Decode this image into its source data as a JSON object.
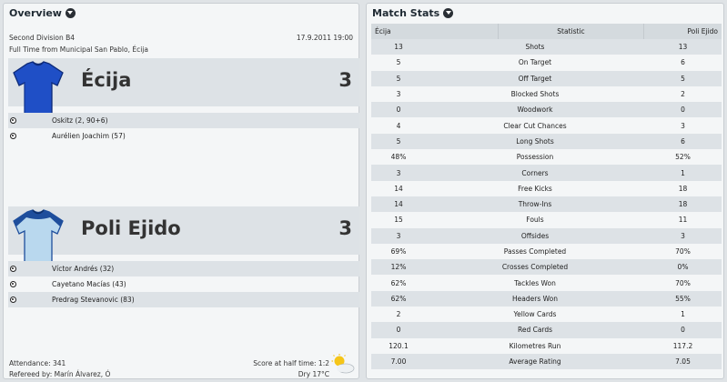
{
  "overview": {
    "title": "Overview",
    "division": "Second Division B4",
    "date_time": "17.9.2011 19:00",
    "venue_line": "Full Time from Municipal San Pablo, Écija",
    "home": {
      "name": "Écija",
      "score": "3",
      "shirt_color": "#1f4fc6",
      "scorers": [
        "Oskitz (2, 90+6)",
        "Aurélien Joachim (57)"
      ]
    },
    "away": {
      "name": "Poli Ejido",
      "score": "3",
      "shirt_color": "#b9d8ee",
      "shirt_trim": "#1e4e9c",
      "scorers": [
        "Víctor Andrés (32)",
        "Cayetano Macías (43)",
        "Predrag Stevanovic (83)"
      ]
    },
    "attendance": "Attendance: 341",
    "referee": "Refereed by: Marín Álvarez, Ó",
    "halftime": "Score at half time: 1:2",
    "weather": "Dry 17°C"
  },
  "match_stats": {
    "title": "Match Stats",
    "header": {
      "home": "Écija",
      "stat": "Statistic",
      "away": "Poli Ejido"
    },
    "rows": [
      {
        "home": "13",
        "stat": "Shots",
        "away": "13"
      },
      {
        "home": "5",
        "stat": "On Target",
        "away": "6"
      },
      {
        "home": "5",
        "stat": "Off Target",
        "away": "5"
      },
      {
        "home": "3",
        "stat": "Blocked Shots",
        "away": "2"
      },
      {
        "home": "0",
        "stat": "Woodwork",
        "away": "0"
      },
      {
        "home": "4",
        "stat": "Clear Cut Chances",
        "away": "3"
      },
      {
        "home": "5",
        "stat": "Long Shots",
        "away": "6"
      },
      {
        "home": "48%",
        "stat": "Possession",
        "away": "52%"
      },
      {
        "home": "3",
        "stat": "Corners",
        "away": "1"
      },
      {
        "home": "14",
        "stat": "Free Kicks",
        "away": "18"
      },
      {
        "home": "14",
        "stat": "Throw-Ins",
        "away": "18"
      },
      {
        "home": "15",
        "stat": "Fouls",
        "away": "11"
      },
      {
        "home": "3",
        "stat": "Offsides",
        "away": "3"
      },
      {
        "home": "69%",
        "stat": "Passes Completed",
        "away": "70%"
      },
      {
        "home": "12%",
        "stat": "Crosses Completed",
        "away": "0%"
      },
      {
        "home": "62%",
        "stat": "Tackles Won",
        "away": "70%"
      },
      {
        "home": "62%",
        "stat": "Headers Won",
        "away": "55%"
      },
      {
        "home": "2",
        "stat": "Yellow Cards",
        "away": "1"
      },
      {
        "home": "0",
        "stat": "Red Cards",
        "away": "0"
      },
      {
        "home": "120.1",
        "stat": "Kilometres Run",
        "away": "117.2"
      },
      {
        "home": "7.00",
        "stat": "Average Rating",
        "away": "7.05"
      }
    ]
  }
}
